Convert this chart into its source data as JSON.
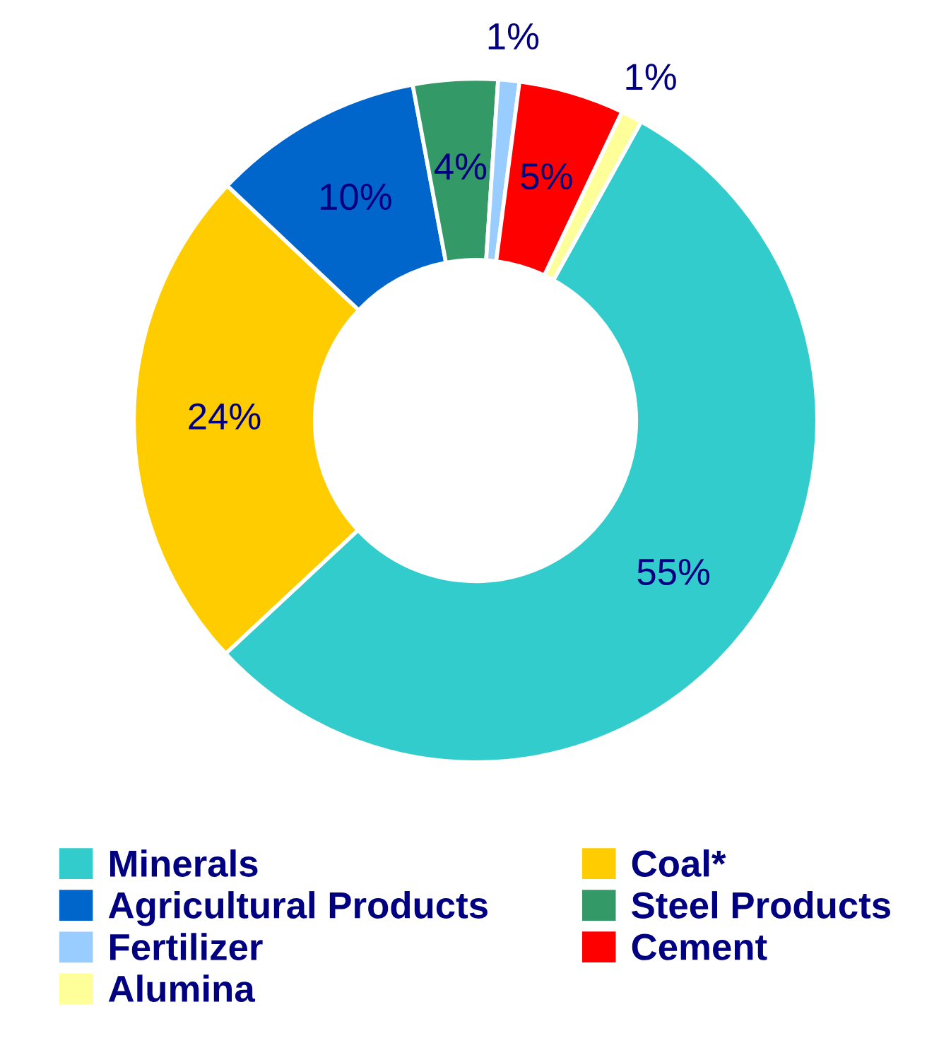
{
  "chart_data": {
    "type": "donut",
    "categories": [
      "Minerals",
      "Coal*",
      "Agricultural Products",
      "Steel Products",
      "Fertilizer",
      "Cement",
      "Alumina"
    ],
    "values": [
      55,
      24,
      10,
      4,
      1,
      5,
      1
    ],
    "colors": [
      "#33cccc",
      "#ffcc00",
      "#0066cc",
      "#339966",
      "#99ccff",
      "#ff0000",
      "#ffff99"
    ],
    "value_labels": [
      "55%",
      "24%",
      "10%",
      "4%",
      "1%",
      "5%",
      "1%"
    ],
    "legend": "bottom"
  }
}
